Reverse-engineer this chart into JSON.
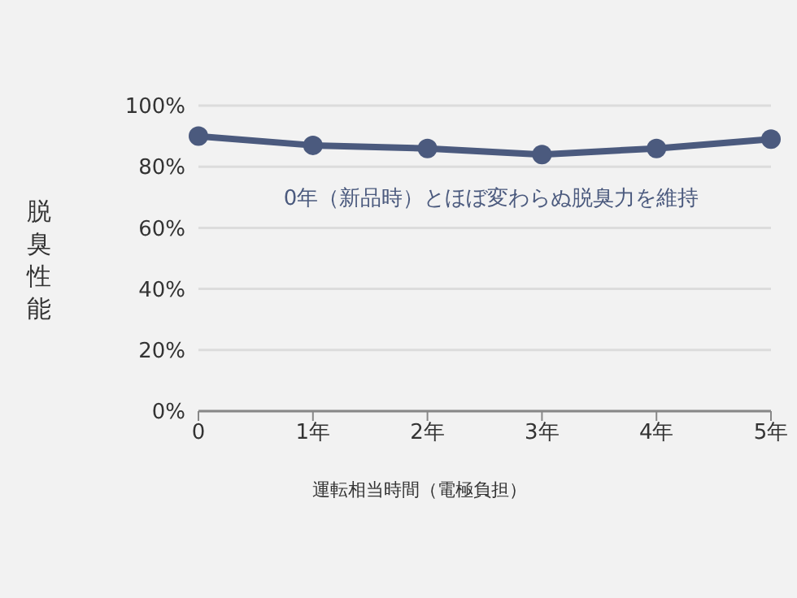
{
  "chart_data": {
    "type": "line",
    "categories": [
      "0",
      "1年",
      "2年",
      "3年",
      "4年",
      "5年"
    ],
    "series": [
      {
        "color": "#4b5a7e",
        "values": [
          90,
          87,
          86,
          84,
          86,
          89
        ]
      }
    ],
    "ylim": [
      0,
      100
    ],
    "yticks": [
      {
        "value": 0,
        "label": "0%"
      },
      {
        "value": 20,
        "label": "20%"
      },
      {
        "value": 40,
        "label": "40%"
      },
      {
        "value": 60,
        "label": "60%"
      },
      {
        "value": 80,
        "label": "80%"
      },
      {
        "value": 100,
        "label": "100%"
      }
    ],
    "xlabel": "運転相当時間（電極負担）",
    "ylabel": "脱臭性能",
    "annotations": [
      "0年（新品時）とほぼ変わらぬ脱臭力を維持"
    ],
    "grid": "y",
    "marker": "circle",
    "line_style": "solid",
    "legend": false
  }
}
